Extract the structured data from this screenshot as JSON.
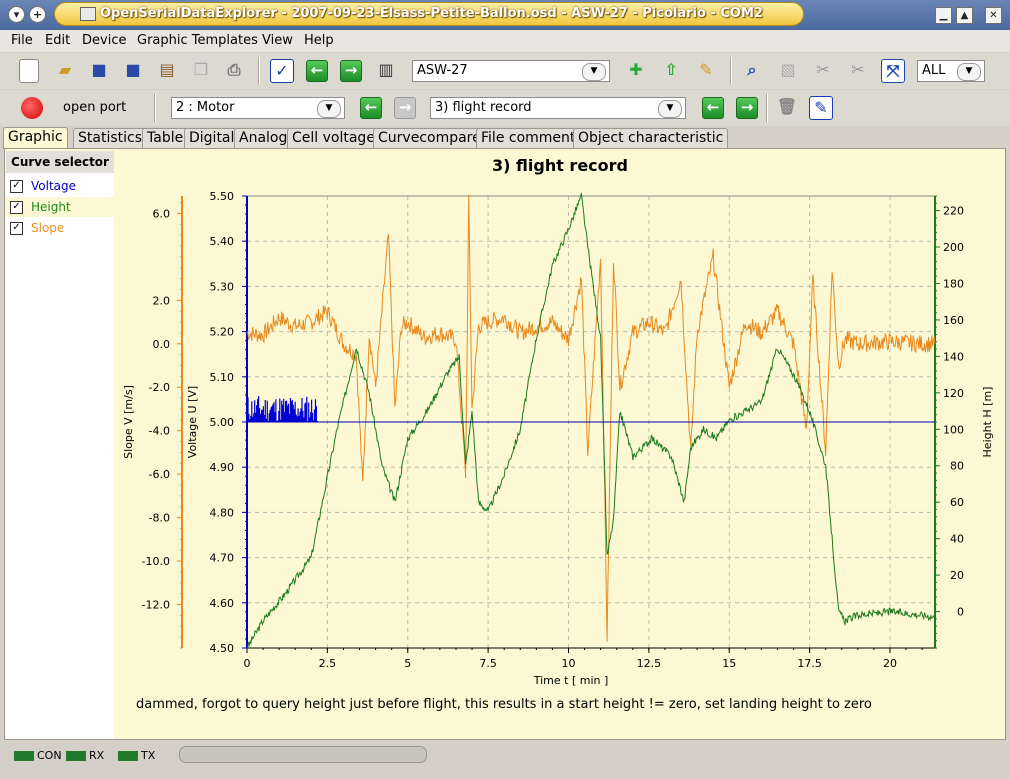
{
  "window": {
    "title": "OpenSerialDataExplorer  -  2007-09-23-Elsass-Petite-Ballon.osd  -  ASW-27  -  Picolario  -  COM2"
  },
  "menu": [
    "File",
    "Edit",
    "Device",
    "Graphic Templates",
    "View",
    "Help"
  ],
  "toolbar": {
    "object_select": "ASW-27",
    "zoom_select": "ALL",
    "open_port_label": "open port",
    "channel_select": "2 : Motor",
    "record_select": "3) flight record"
  },
  "tabs": [
    "Graphic",
    "Statistics",
    "Table",
    "Digital",
    "Analog",
    "Cell voltage",
    "Curvecompare",
    "File comment",
    "Object characteristic"
  ],
  "curve_selector": {
    "header": "Curve selector",
    "items": [
      {
        "label": "Voltage",
        "color": "#0000c8",
        "checked": true
      },
      {
        "label": "Height",
        "color": "#1e8a1e",
        "checked": true
      },
      {
        "label": "Slope",
        "color": "#e8901e",
        "checked": true
      }
    ]
  },
  "status": {
    "con": "CON",
    "rx": "RX",
    "tx": "TX"
  },
  "colors": {
    "voltage": "#0000b4",
    "height": "#1e7a1e",
    "slope": "#e88a1e",
    "background": "#fbf8d3"
  },
  "chart_data": {
    "type": "line",
    "title": "3) flight record",
    "xlabel": "Time   t   [ min ]",
    "xlim": [
      0,
      21.4
    ],
    "xticks": [
      "0",
      "2.5",
      "5",
      "7.5",
      "10",
      "12.5",
      "15",
      "17.5",
      "20"
    ],
    "grid": true,
    "comment": "dammed, forgot to query height just before flight, this results in a start height != zero, set landing height to zero",
    "axes": {
      "slope": {
        "label": "Slope   V   [m/s]",
        "ylim": [
          -14.0,
          6.8
        ],
        "ticks": [
          "6.0",
          "2.0",
          "0.0",
          "-2.0",
          "-4.0",
          "-6.0",
          "-8.0",
          "-10.0",
          "-12.0"
        ],
        "tick_values": [
          6,
          2,
          0,
          -2,
          -4,
          -6,
          -8,
          -10,
          -12
        ]
      },
      "voltage": {
        "label": "Voltage   U   [V]",
        "ylim": [
          4.5,
          5.5
        ],
        "ticks": [
          "5.50",
          "5.40",
          "5.30",
          "5.20",
          "5.10",
          "5.00",
          "4.90",
          "4.80",
          "4.70",
          "4.60",
          "4.50"
        ],
        "tick_values": [
          5.5,
          5.4,
          5.3,
          5.2,
          5.1,
          5.0,
          4.9,
          4.8,
          4.7,
          4.6,
          4.5
        ]
      },
      "height": {
        "label": "Height   H   [m]",
        "ylim": [
          -20,
          228
        ],
        "ticks": [
          "220",
          "200",
          "180",
          "160",
          "140",
          "120",
          "100",
          "80",
          "60",
          "40",
          "20",
          "0"
        ],
        "tick_values": [
          220,
          200,
          180,
          160,
          140,
          120,
          100,
          80,
          60,
          40,
          20,
          0
        ]
      }
    },
    "series": [
      {
        "name": "Voltage",
        "axis": "voltage",
        "x": [
          0,
          2.2,
          2.2,
          21.4
        ],
        "y": [
          5.0,
          5.0,
          5.0,
          5.0
        ],
        "noise_band": [
          0,
          2.2,
          5.0,
          5.06
        ]
      },
      {
        "name": "Height",
        "axis": "height",
        "x": [
          0,
          0.5,
          1.2,
          2.0,
          2.8,
          3.4,
          3.8,
          4.2,
          4.6,
          5.0,
          5.6,
          6.2,
          6.6,
          6.8,
          7.0,
          7.2,
          7.5,
          8.0,
          8.5,
          9.0,
          9.5,
          10.0,
          10.4,
          10.6,
          11.0,
          11.2,
          11.4,
          11.6,
          12.0,
          12.6,
          13.2,
          13.6,
          13.8,
          14.2,
          14.6,
          15.0,
          15.5,
          16.0,
          16.5,
          17.0,
          17.5,
          18.0,
          18.2,
          18.4,
          18.6,
          19.0,
          20.0,
          21.0,
          21.4
        ],
        "y": [
          -20,
          -5,
          10,
          30,
          100,
          145,
          120,
          80,
          60,
          95,
          110,
          130,
          140,
          80,
          110,
          60,
          55,
          75,
          100,
          150,
          190,
          210,
          228,
          200,
          150,
          30,
          50,
          110,
          85,
          95,
          85,
          60,
          90,
          100,
          95,
          105,
          110,
          115,
          145,
          130,
          110,
          80,
          40,
          0,
          -5,
          -2,
          0,
          -2,
          -3
        ]
      },
      {
        "name": "Slope",
        "axis": "slope",
        "x": [
          0,
          0.5,
          1.0,
          1.5,
          2.0,
          2.5,
          3.0,
          3.4,
          3.6,
          3.8,
          4.0,
          4.4,
          4.6,
          4.8,
          5.0,
          5.5,
          6.0,
          6.5,
          6.8,
          6.9,
          7.0,
          7.2,
          7.5,
          8.0,
          8.5,
          9.0,
          9.5,
          10.0,
          10.4,
          10.6,
          11.0,
          11.2,
          11.4,
          11.6,
          12.0,
          12.5,
          13.0,
          13.5,
          13.8,
          14.0,
          14.5,
          15.0,
          15.5,
          16.0,
          16.5,
          17.0,
          17.4,
          17.6,
          17.8,
          18.0,
          18.2,
          18.4,
          18.6,
          19.0,
          20.0,
          21.0,
          21.4
        ],
        "y": [
          0.5,
          0.4,
          1.2,
          0.8,
          1.0,
          1.5,
          0.0,
          -0.5,
          -6.5,
          0.5,
          -2.0,
          5.0,
          -3.0,
          0.8,
          1.0,
          0.3,
          0.5,
          0.2,
          -6.0,
          6.5,
          -3.0,
          0.8,
          1.0,
          1.2,
          0.5,
          0.8,
          1.0,
          0.2,
          3.0,
          -5.0,
          4.0,
          -13.5,
          4.0,
          -2.0,
          0.5,
          1.0,
          0.5,
          3.0,
          -5.0,
          0.5,
          4.0,
          -2.0,
          1.0,
          0.5,
          1.5,
          0.0,
          -4.0,
          3.0,
          -1.0,
          -5.0,
          3.5,
          -1.0,
          0.2,
          0.0,
          0.1,
          0.0,
          0.0
        ]
      }
    ]
  }
}
